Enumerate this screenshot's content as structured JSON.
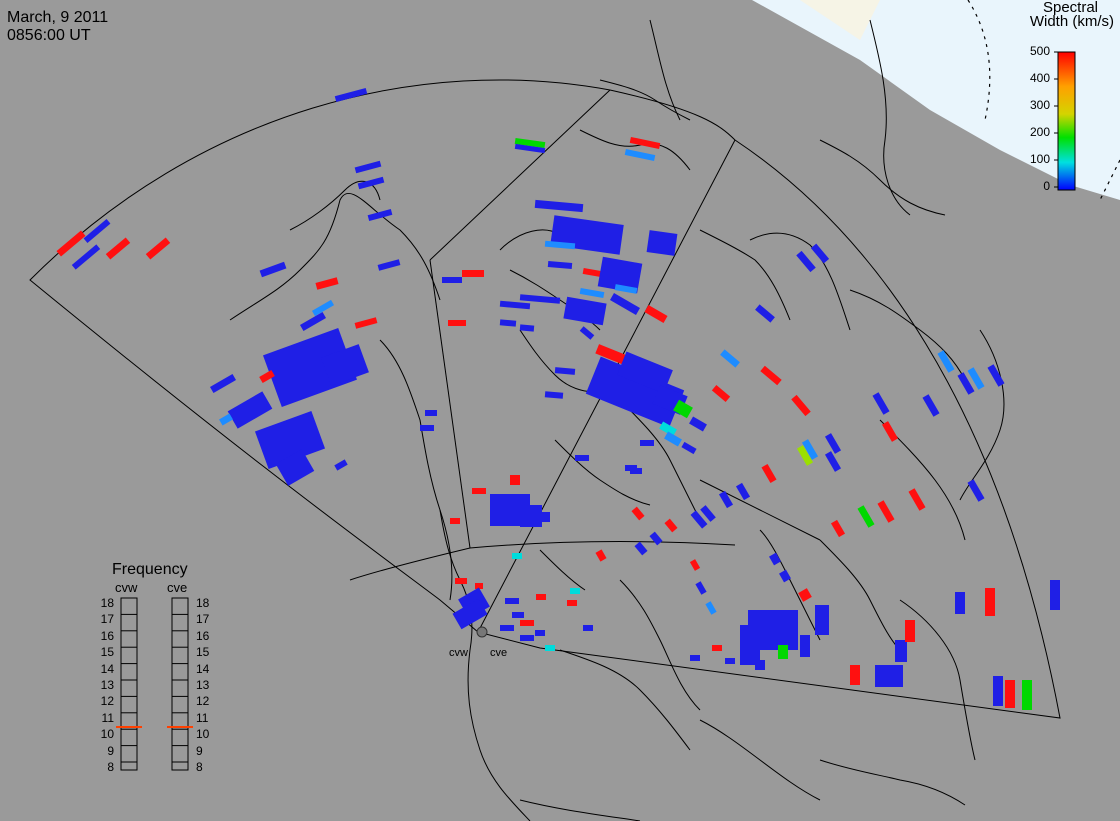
{
  "header": {
    "date": "March, 9 2011",
    "time": "0856:00 UT"
  },
  "colorbar": {
    "title_line1": "Spectral",
    "title_line2": "Width (km/s)",
    "ticks": [
      "500",
      "400",
      "300",
      "200",
      "100",
      "0"
    ],
    "stops": [
      "#ff0000",
      "#ffa000",
      "#d4d400",
      "#00e000",
      "#00e0e0",
      "#0000ff"
    ]
  },
  "frequency": {
    "title": "Frequency",
    "left_label": "cvw",
    "right_label": "cve",
    "levels": [
      "18",
      "17",
      "16",
      "15",
      "14",
      "13",
      "12",
      "11",
      "10",
      "9",
      "8"
    ],
    "cvw_value": 10.5,
    "cve_value": 10.5,
    "marker_color": "#ff4000"
  },
  "radars": {
    "cvw": "cvw",
    "cve": "cve"
  },
  "colors": {
    "background": "#9a9a9a",
    "polar_region": "#e9f5fc",
    "dark_pole": "#f6f4e6",
    "blue": "#1f1fe6",
    "light_blue": "#1e8cff",
    "cyan": "#00dcdc",
    "green": "#00d800",
    "yellow_green": "#9be000",
    "red": "#ff1010"
  }
}
